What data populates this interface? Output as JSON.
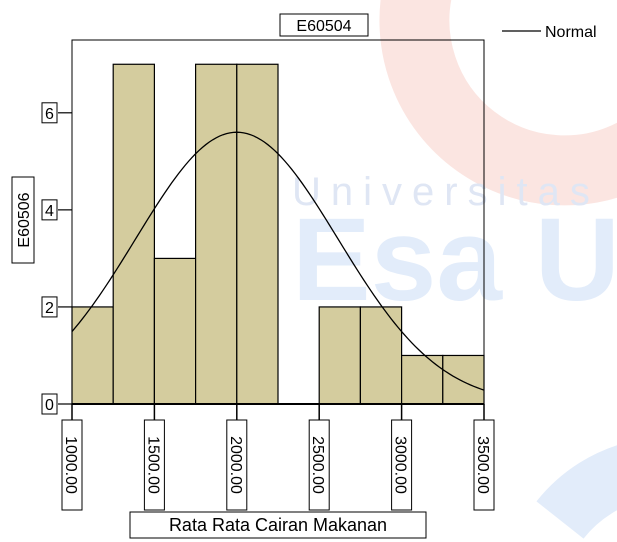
{
  "chart_data": {
    "type": "bar",
    "title": "E60504",
    "xlabel": "Rata Rata Cairan Makanan",
    "ylabel": "E60506",
    "legend": {
      "entries": [
        "Normal"
      ],
      "placement": "top-right"
    },
    "bins": [
      {
        "start": 1000,
        "end": 1250,
        "count": 2
      },
      {
        "start": 1250,
        "end": 1500,
        "count": 7
      },
      {
        "start": 1500,
        "end": 1750,
        "count": 3
      },
      {
        "start": 1750,
        "end": 2000,
        "count": 7
      },
      {
        "start": 2000,
        "end": 2250,
        "count": 7
      },
      {
        "start": 2250,
        "end": 2500,
        "count": 0
      },
      {
        "start": 2500,
        "end": 2750,
        "count": 2
      },
      {
        "start": 2750,
        "end": 3000,
        "count": 2
      },
      {
        "start": 3000,
        "end": 3250,
        "count": 1
      },
      {
        "start": 3250,
        "end": 3500,
        "count": 1
      }
    ],
    "x_ticks": [
      {
        "value": 1000,
        "label": "1000.00"
      },
      {
        "value": 1500,
        "label": "1500.00"
      },
      {
        "value": 2000,
        "label": "2000.00"
      },
      {
        "value": 2500,
        "label": "2500.00"
      },
      {
        "value": 3000,
        "label": "3000.00"
      },
      {
        "value": 3500,
        "label": "3500.00"
      }
    ],
    "y_ticks": [
      {
        "value": 0,
        "label": "0"
      },
      {
        "value": 2,
        "label": "2"
      },
      {
        "value": 4,
        "label": "4"
      },
      {
        "value": 6,
        "label": "6"
      }
    ],
    "xlim": [
      1000,
      3500
    ],
    "ylim": [
      0,
      7.5
    ],
    "normal_curve": {
      "mean": 2000,
      "sd": 615,
      "peak": 5.6
    },
    "grid": false,
    "colors": {
      "bar_fill": "#d4cc9e",
      "stroke": "#000000"
    }
  },
  "watermark": {
    "line1": "Universitas",
    "line2": "Esa Ur",
    "colors": {
      "line1": "#dfe6f4",
      "line2": "#e2ecfa",
      "arc_red": "#fbe5e1",
      "arc_blue": "#e2ecfa"
    }
  }
}
